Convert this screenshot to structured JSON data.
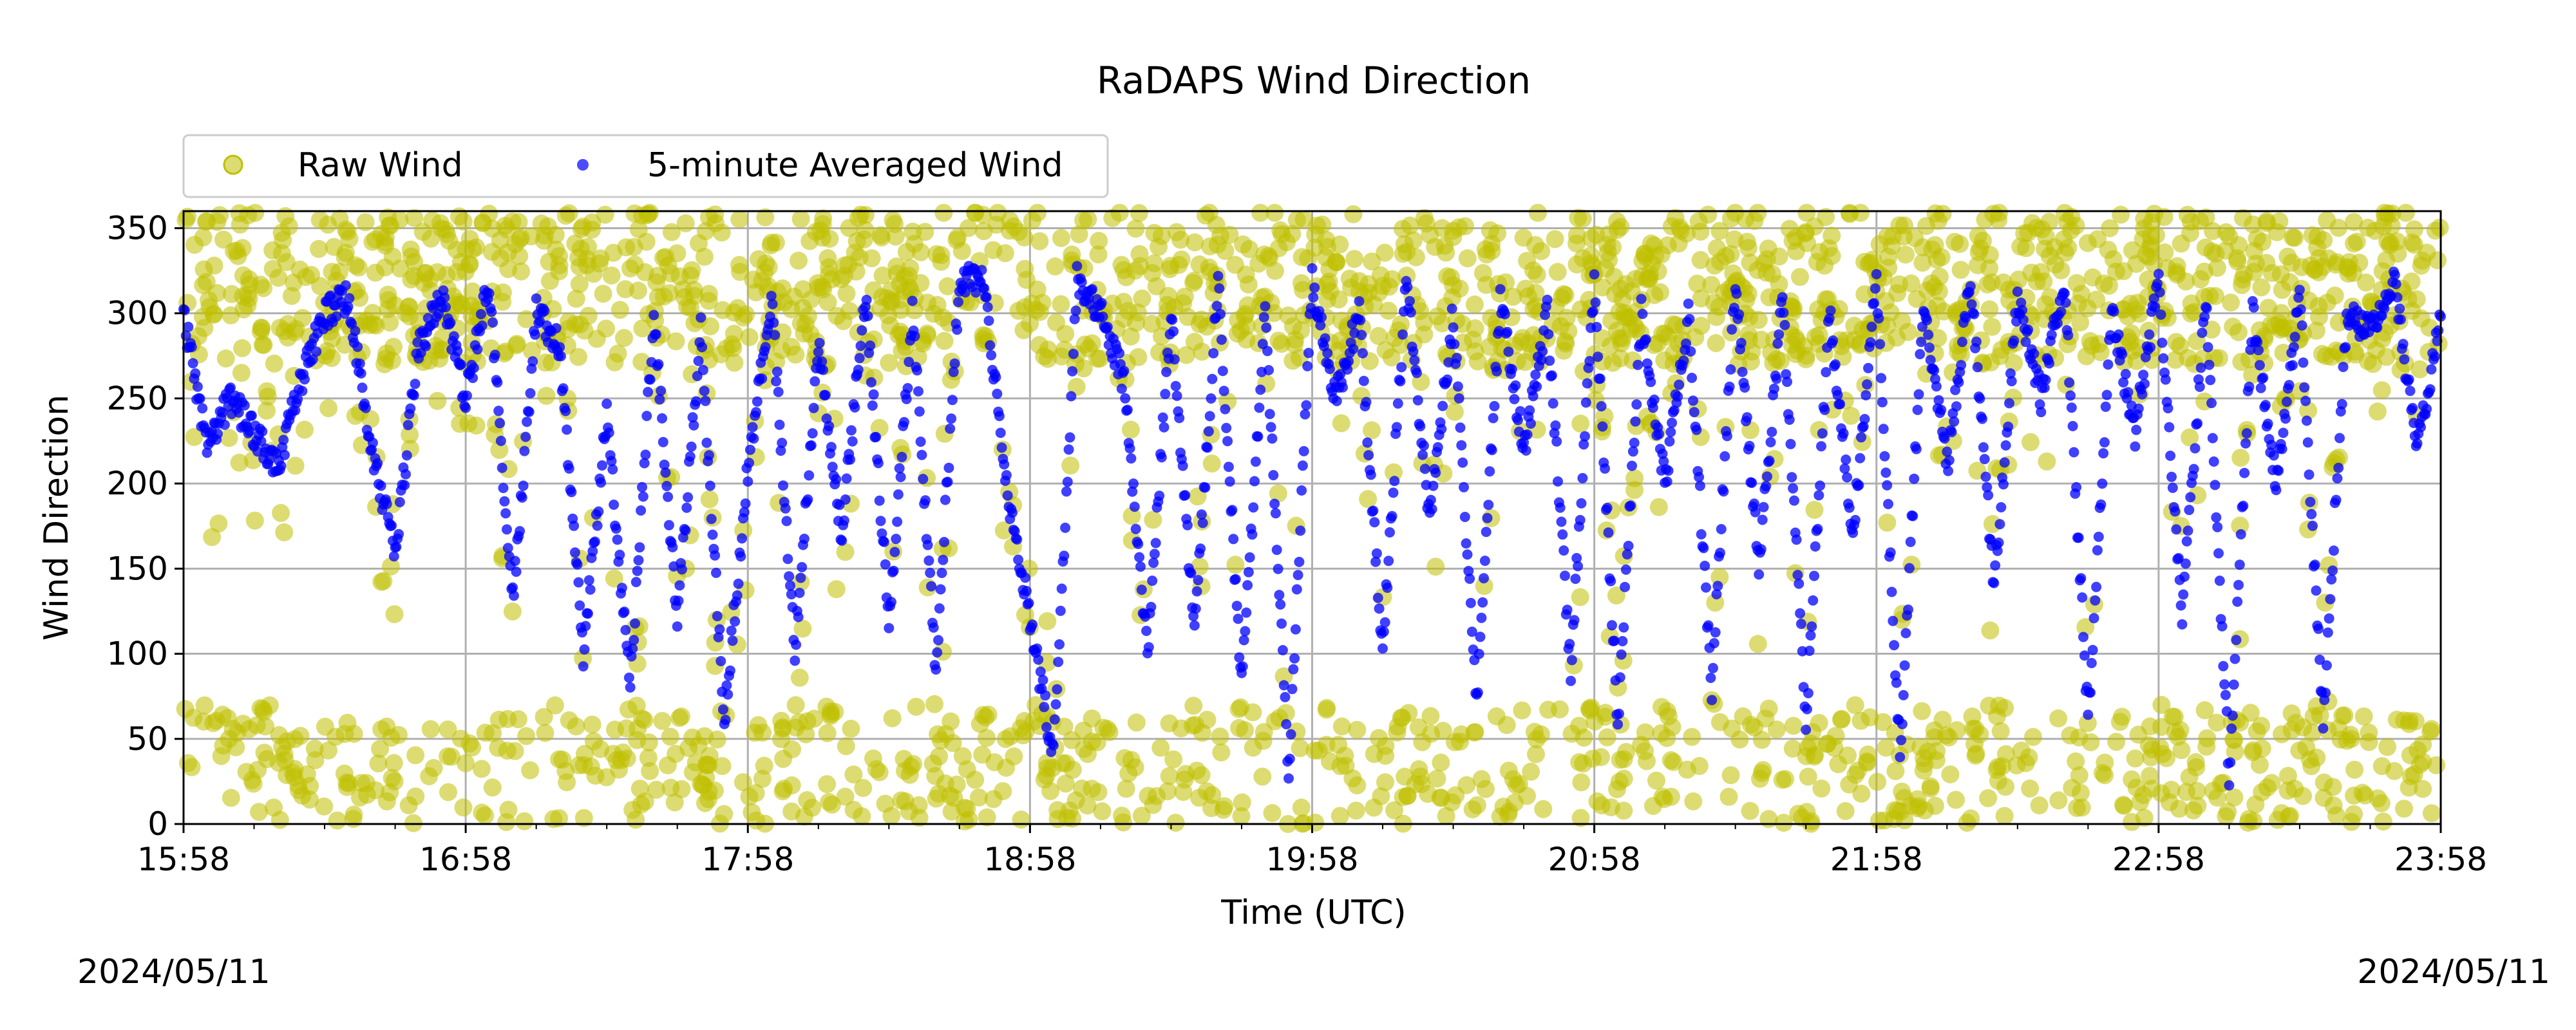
{
  "chart_data": {
    "type": "scatter",
    "title": "RaDAPS Wind Direction",
    "xlabel": "Time (UTC)",
    "ylabel": "Wind Direction",
    "xlim": [
      "15:58",
      "23:58"
    ],
    "ylim": [
      0,
      360
    ],
    "x_ticks": [
      "15:58",
      "16:58",
      "17:58",
      "18:58",
      "19:58",
      "20:58",
      "21:58",
      "22:58",
      "23:58"
    ],
    "y_ticks": [
      0,
      50,
      100,
      150,
      200,
      250,
      300,
      350
    ],
    "grid": true,
    "legend_position": "top-left, above plot",
    "series": [
      {
        "name": "Raw Wind",
        "color": "#bfbf00",
        "marker": "large circle",
        "description_values": "dense scatter; mostly 270-360 and 0-60, scattered across full range"
      },
      {
        "name": "5-minute Averaged Wind",
        "color": "#0000ff",
        "marker": "small circle",
        "x_minutes_from_start": [
          0,
          5,
          10,
          15,
          20,
          25,
          30,
          35,
          40,
          45,
          50,
          55,
          60,
          65,
          70,
          75,
          80,
          85,
          90,
          95,
          100,
          105,
          110,
          115,
          120,
          125,
          130,
          135,
          140,
          145,
          150,
          155,
          160,
          165,
          170,
          175,
          180,
          185,
          190,
          195,
          200,
          205,
          210,
          215,
          220,
          225,
          230,
          235,
          240,
          245,
          250,
          255,
          260,
          265,
          270,
          275,
          280,
          285,
          290,
          295,
          300,
          305,
          310,
          315,
          320,
          325,
          330,
          335,
          340,
          345,
          350,
          355,
          360,
          365,
          370,
          375,
          380,
          385,
          390,
          395,
          400,
          405,
          410,
          415,
          420,
          425,
          430,
          435,
          440,
          445,
          450,
          455,
          460,
          465,
          470,
          475,
          480
        ],
        "values": [
          300,
          220,
          250,
          230,
          210,
          260,
          300,
          310,
          220,
          160,
          280,
          310,
          250,
          320,
          130,
          300,
          280,
          100,
          240,
          80,
          300,
          120,
          290,
          60,
          210,
          310,
          100,
          280,
          170,
          310,
          120,
          300,
          90,
          320,
          320,
          200,
          120,
          40,
          320,
          300,
          260,
          100,
          300,
          110,
          320,
          80,
          300,
          30,
          320,
          250,
          300,
          100,
          320,
          180,
          300,
          70,
          310,
          220,
          300,
          90,
          320,
          60,
          300,
          200,
          300,
          80,
          320,
          150,
          310,
          60,
          300,
          170,
          320,
          40,
          310,
          210,
          320,
          140,
          310,
          250,
          320,
          60,
          300,
          230,
          320,
          120,
          310,
          30,
          300,
          200,
          310,
          60,
          300,
          290,
          320,
          220,
          300
        ]
      }
    ]
  },
  "footer": {
    "date_left": "2024/05/11",
    "date_right": "2024/05/11"
  }
}
